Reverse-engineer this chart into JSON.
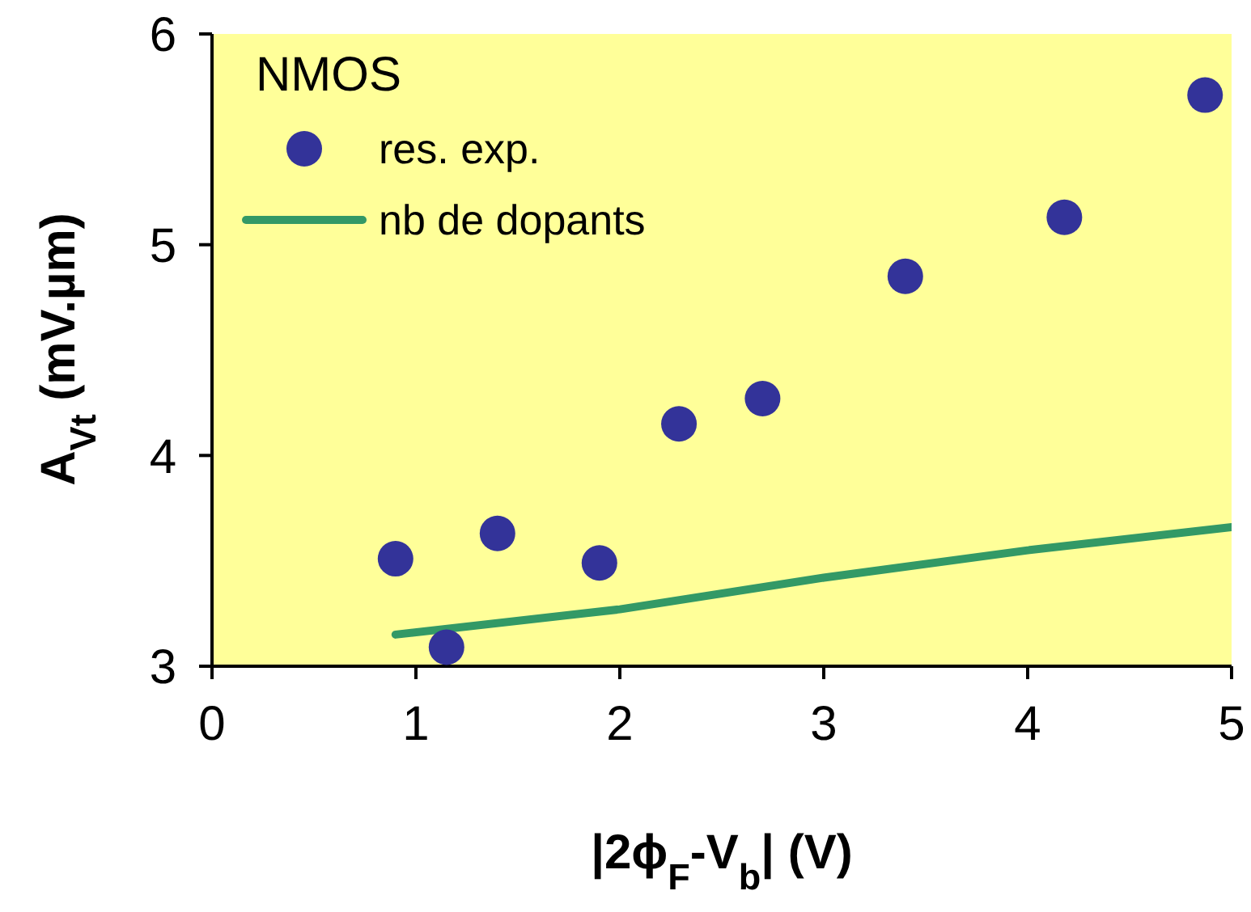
{
  "chart_data": {
    "type": "scatter",
    "xlabel": "|2ϕ$_{F}$-V$_{b}$| (V)",
    "ylabel": "A$_{Vt}$ (mV.µm)",
    "legend_title": "NMOS",
    "xlim": [
      0,
      5
    ],
    "xticks": [
      0,
      1,
      2,
      3,
      4,
      5
    ],
    "ylim": [
      3,
      6
    ],
    "yticks": [
      3,
      4,
      5,
      6
    ],
    "grid": false,
    "legend": "top left",
    "marker": "circle",
    "series": [
      {
        "name": "res. exp.",
        "color": "#333399",
        "x": [
          0.9,
          1.15,
          1.4,
          1.9,
          2.29,
          2.7,
          3.4,
          4.18,
          4.87
        ],
        "values": [
          3.51,
          3.09,
          3.63,
          3.49,
          4.15,
          4.27,
          4.85,
          5.13,
          5.71
        ]
      },
      {
        "name": "nb de dopants",
        "type": "line",
        "color": "#339966",
        "marker": "none",
        "line_style": "solid",
        "x": [
          0.9,
          2,
          3,
          4,
          5
        ],
        "values": [
          3.15,
          3.27,
          3.42,
          3.55,
          3.66
        ]
      }
    ]
  }
}
